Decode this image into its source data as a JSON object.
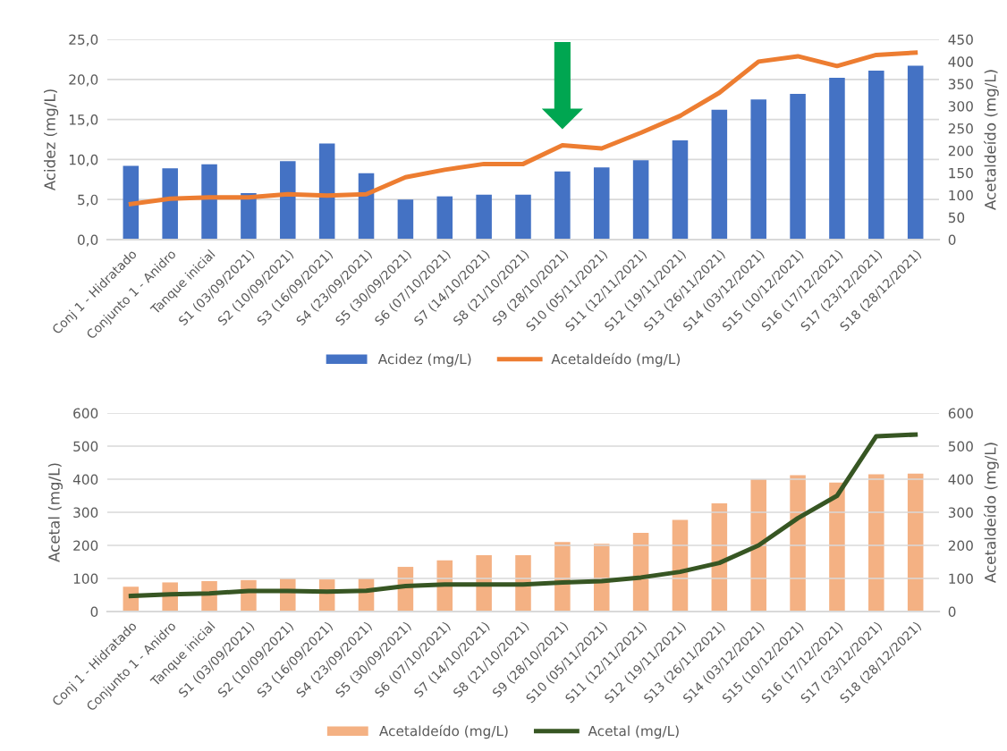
{
  "chart_data": [
    {
      "type": "bar",
      "categories": [
        "Conj 1 - Hidratado",
        "Conjunto 1 - Anidro",
        "Tanque inicial",
        "S1 (03/09/2021)",
        "S2 (10/09/2021)",
        "S3 (16/09/2021)",
        "S4 (23/09/2021)",
        "S5 (30/09/2021)",
        "S6 (07/10/2021)",
        "S7 (14/10/2021)",
        "S8 (21/10/2021)",
        "S9 (28/10/2021)",
        "S10 (05/11/2021)",
        "S11 (12/11/2021)",
        "S12 (19/11/2021)",
        "S13 (26/11/2021)",
        "S14 (03/12/2021)",
        "S15 (10/12/2021)",
        "S16 (17/12/2021)",
        "S17 (23/12/2021)",
        "S18 (28/12/2021)"
      ],
      "series": [
        {
          "name": "Acidez (mg/L)",
          "color": "#4472c4",
          "values": [
            9.2,
            8.9,
            9.4,
            5.8,
            9.8,
            12.0,
            8.3,
            5.0,
            5.4,
            5.6,
            5.6,
            8.5,
            9.0,
            9.9,
            12.4,
            16.2,
            17.5,
            18.2,
            20.2,
            21.1,
            21.7
          ]
        },
        {
          "name": "Acetaldeído (mg/L)",
          "type": "line",
          "axis": "y2",
          "color": "#ed7d31",
          "values": [
            80,
            92,
            95,
            95,
            102,
            99,
            102,
            140,
            157,
            170,
            170,
            212,
            205,
            240,
            278,
            330,
            400,
            412,
            390,
            415,
            420
          ]
        }
      ],
      "ylabel": "Acidez (mg/L)",
      "y2label": "Acetaldeído (mg/L)",
      "ylim": [
        0,
        25
      ],
      "yticks": [
        {
          "value": 0,
          "label": "0,0"
        },
        {
          "value": 5,
          "label": "5,0"
        },
        {
          "value": 10,
          "label": "10,0"
        },
        {
          "value": 15,
          "label": "15,0"
        },
        {
          "value": 20,
          "label": "20,0"
        },
        {
          "value": 25,
          "label": "25,0"
        }
      ],
      "y2lim": [
        0,
        450
      ],
      "y2ticks": [
        0,
        50,
        100,
        150,
        200,
        250,
        300,
        350,
        400,
        450
      ],
      "grid": "y",
      "legend": "bottom",
      "marker": "none",
      "line_style": "solid"
    },
    {
      "type": "bar",
      "categories": [
        "Conj 1 - Hidratado",
        "Conjunto 1 - Anidro",
        "Tanque inicial",
        "S1 (03/09/2021)",
        "S2 (10/09/2021)",
        "S3 (16/09/2021)",
        "S4 (23/09/2021)",
        "S5 (30/09/2021)",
        "S6 (07/10/2021)",
        "S7 (14/10/2021)",
        "S8 (21/10/2021)",
        "S9 (28/10/2021)",
        "S10 (05/11/2021)",
        "S11 (12/11/2021)",
        "S12 (19/11/2021)",
        "S13 (26/11/2021)",
        "S14 (03/12/2021)",
        "S15 (10/12/2021)",
        "S16 (17/12/2021)",
        "S17 (23/12/2021)",
        "S18 (28/12/2021)"
      ],
      "series": [
        {
          "name": "Acetaldeído (mg/L)",
          "axis": "y2",
          "color": "#f4b183",
          "values": [
            75,
            88,
            92,
            95,
            100,
            97,
            100,
            135,
            155,
            170,
            170,
            210,
            205,
            238,
            277,
            327,
            400,
            412,
            390,
            415,
            417
          ]
        },
        {
          "name": "Acetal (mg/L)",
          "type": "line",
          "color": "#375623",
          "values": [
            47,
            52,
            55,
            62,
            62,
            60,
            63,
            77,
            82,
            82,
            82,
            88,
            92,
            103,
            120,
            147,
            200,
            282,
            350,
            530,
            535
          ]
        }
      ],
      "ylabel": "Acetal (mg/L)",
      "y2label": "Acetaldeído (mg/L)",
      "ylim": [
        0,
        600
      ],
      "yticks": [
        0,
        100,
        200,
        300,
        400,
        500,
        600
      ],
      "y2lim": [
        0,
        600
      ],
      "y2ticks": [
        0,
        100,
        200,
        300,
        400,
        500,
        600
      ],
      "grid": "y",
      "legend": "bottom",
      "marker": "none",
      "line_style": "solid"
    }
  ]
}
